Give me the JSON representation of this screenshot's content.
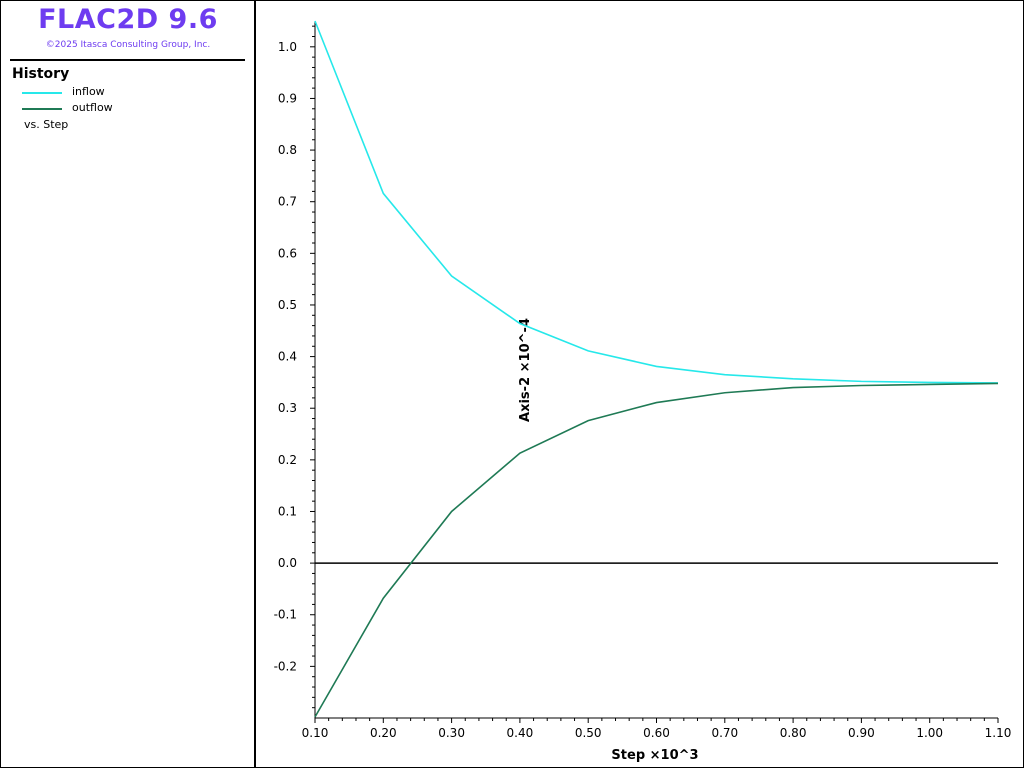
{
  "header": {
    "title": "FLAC2D 9.6",
    "copyright": "©2025 Itasca Consulting Group, Inc."
  },
  "legend": {
    "heading": "History",
    "items": [
      {
        "label": "inflow",
        "color": "#26e8ea"
      },
      {
        "label": "outflow",
        "color": "#1f7a55"
      }
    ],
    "vs_label": "vs. Step"
  },
  "chart_data": {
    "type": "line",
    "xlabel": "Step ×10^3",
    "ylabel": "Axis-2 ×10^-4",
    "xlim": [
      0.1,
      1.1
    ],
    "ylim": [
      -0.3,
      1.05
    ],
    "x_ticks": [
      "0.10",
      "0.20",
      "0.30",
      "0.40",
      "0.50",
      "0.60",
      "0.70",
      "0.80",
      "0.90",
      "1.00",
      "1.10"
    ],
    "y_ticks": [
      "1.0",
      "0.9",
      "0.8",
      "0.7",
      "0.6",
      "0.5",
      "0.4",
      "0.3",
      "0.2",
      "0.1",
      "0.0",
      "-0.1",
      "-0.2"
    ],
    "grid": false,
    "zero_line": true,
    "series": [
      {
        "name": "inflow",
        "color": "#26e8ea",
        "x": [
          0.1,
          0.2,
          0.3,
          0.4,
          0.5,
          0.6,
          0.7,
          0.8,
          0.9,
          1.0,
          1.1
        ],
        "y": [
          1.05,
          0.716,
          0.556,
          0.464,
          0.411,
          0.381,
          0.365,
          0.357,
          0.352,
          0.35,
          0.349
        ]
      },
      {
        "name": "outflow",
        "color": "#1f7a55",
        "x": [
          0.1,
          0.2,
          0.3,
          0.4,
          0.5,
          0.6,
          0.7,
          0.8,
          0.9,
          1.0,
          1.1
        ],
        "y": [
          -0.298,
          -0.068,
          0.1,
          0.213,
          0.276,
          0.311,
          0.33,
          0.34,
          0.344,
          0.346,
          0.348
        ]
      }
    ]
  }
}
